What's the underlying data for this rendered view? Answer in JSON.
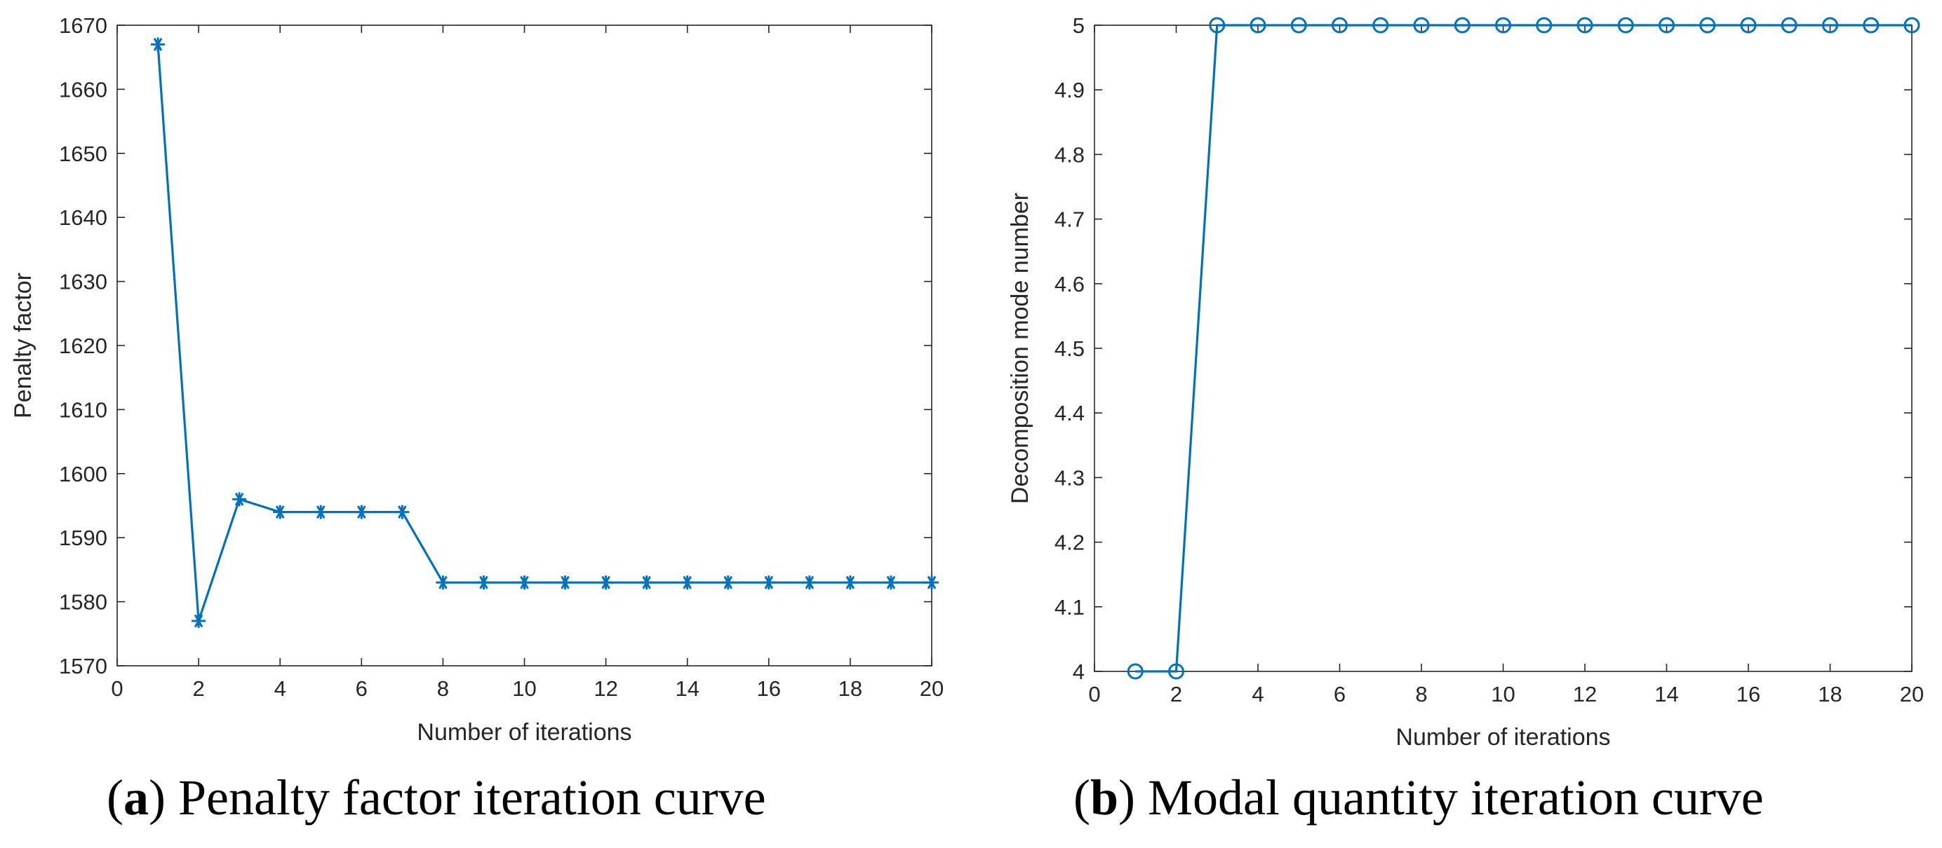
{
  "colors": {
    "series": "#0072BD",
    "axis": "#262626",
    "background": "#ffffff"
  },
  "chart_data": [
    {
      "type": "line",
      "marker": "asterisk",
      "caption_letter": "a",
      "caption_text": "Penalty factor iteration curve",
      "title": "",
      "xlabel": "Number of iterations",
      "ylabel": "Penalty factor",
      "xlim": [
        0,
        20
      ],
      "ylim": [
        1570,
        1670
      ],
      "xticks": [
        0,
        2,
        4,
        6,
        8,
        10,
        12,
        14,
        16,
        18,
        20
      ],
      "yticks": [
        1570,
        1580,
        1590,
        1600,
        1610,
        1620,
        1630,
        1640,
        1650,
        1660,
        1670
      ],
      "grid": false,
      "series": [
        {
          "name": "Penalty factor",
          "x": [
            1,
            2,
            3,
            4,
            5,
            6,
            7,
            8,
            9,
            10,
            11,
            12,
            13,
            14,
            15,
            16,
            17,
            18,
            19,
            20
          ],
          "values": [
            1667,
            1577,
            1596,
            1594,
            1594,
            1594,
            1594,
            1583,
            1583,
            1583,
            1583,
            1583,
            1583,
            1583,
            1583,
            1583,
            1583,
            1583,
            1583,
            1583
          ]
        }
      ]
    },
    {
      "type": "line",
      "marker": "circle",
      "caption_letter": "b",
      "caption_text": "Modal quantity iteration curve",
      "title": "",
      "xlabel": "Number of iterations",
      "ylabel": "Decomposition mode number",
      "xlim": [
        0,
        20
      ],
      "ylim": [
        4,
        5
      ],
      "xticks": [
        0,
        2,
        4,
        6,
        8,
        10,
        12,
        14,
        16,
        18,
        20
      ],
      "yticks": [
        4,
        4.1,
        4.2,
        4.3,
        4.4,
        4.5,
        4.6,
        4.7,
        4.8,
        4.9,
        5
      ],
      "grid": false,
      "series": [
        {
          "name": "Decomposition mode number",
          "x": [
            1,
            2,
            3,
            4,
            5,
            6,
            7,
            8,
            9,
            10,
            11,
            12,
            13,
            14,
            15,
            16,
            17,
            18,
            19,
            20
          ],
          "values": [
            4,
            4,
            5,
            5,
            5,
            5,
            5,
            5,
            5,
            5,
            5,
            5,
            5,
            5,
            5,
            5,
            5,
            5,
            5,
            5
          ]
        }
      ]
    }
  ]
}
